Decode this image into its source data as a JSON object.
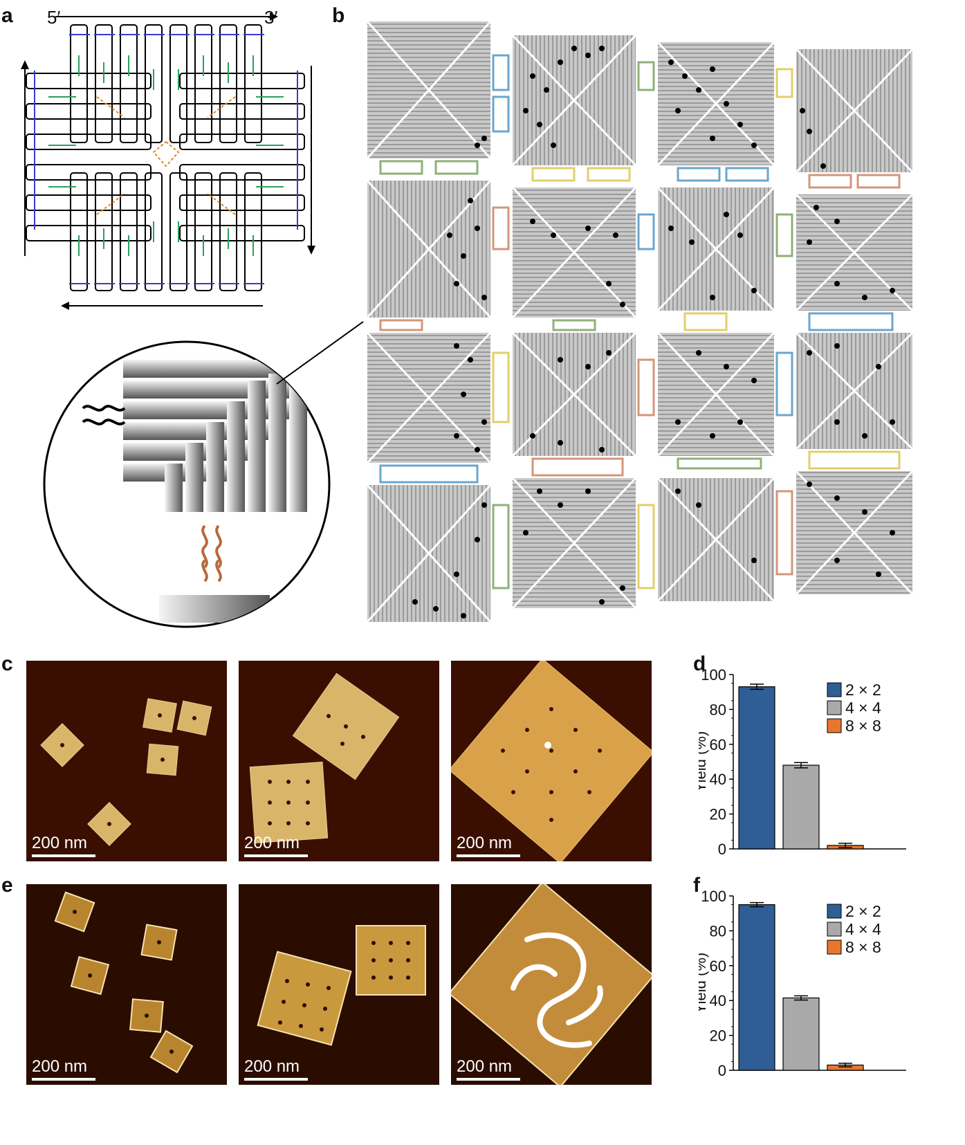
{
  "panels": {
    "a": "a",
    "b": "b",
    "c": "c",
    "d": "d",
    "e": "e",
    "f": "f"
  },
  "panel_a": {
    "five_prime": "5′",
    "three_prime": "3′"
  },
  "scale_bar": "200 nm",
  "colors": {
    "blue_bar": "#2f5d95",
    "grey_bar": "#a9a9a9",
    "orange_bar": "#e8772e",
    "afm_bg": "#3a0f02",
    "tile_grey": "#bdbdbd"
  },
  "chart_data": [
    {
      "panel": "d",
      "type": "bar",
      "categories": [
        "2 × 2",
        "4 × 4",
        "8 × 8"
      ],
      "values": [
        93,
        48,
        2
      ],
      "errors": [
        1.5,
        1.5,
        1.2
      ],
      "ylabel": "Yield (%)",
      "ylim": [
        0,
        100
      ],
      "yticks": [
        0,
        20,
        40,
        60,
        80,
        100
      ],
      "legend": [
        "2 × 2",
        "4 × 4",
        "8 × 8"
      ]
    },
    {
      "panel": "f",
      "type": "bar",
      "categories": [
        "2 × 2",
        "4 × 4",
        "8 × 8"
      ],
      "values": [
        95,
        41.5,
        3
      ],
      "errors": [
        1.2,
        1.2,
        1.0
      ],
      "ylabel": "Yield (%)",
      "ylim": [
        0,
        100
      ],
      "yticks": [
        0,
        20,
        40,
        60,
        80,
        100
      ],
      "legend": [
        "2 × 2",
        "4 × 4",
        "8 × 8"
      ]
    }
  ]
}
